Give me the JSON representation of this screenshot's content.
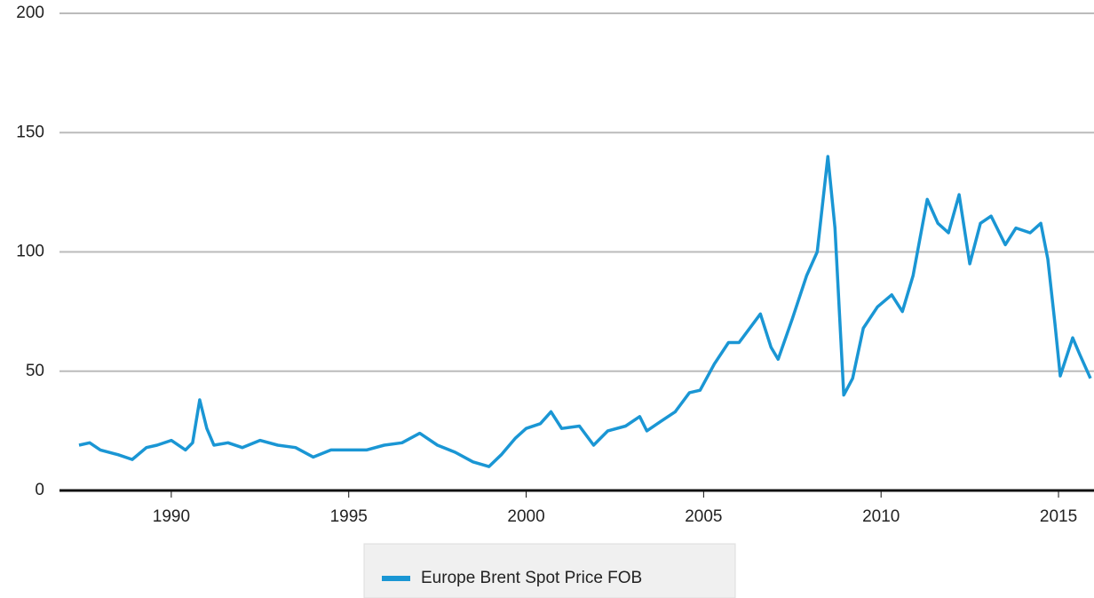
{
  "chart_data": {
    "type": "line",
    "x": [
      1987.4,
      1987.7,
      1988,
      1988.5,
      1988.9,
      1989.3,
      1989.6,
      1990,
      1990.4,
      1990.6,
      1990.8,
      1991,
      1991.2,
      1991.6,
      1992,
      1992.5,
      1993,
      1993.5,
      1994,
      1994.5,
      1995,
      1995.5,
      1996,
      1996.5,
      1997,
      1997.5,
      1998,
      1998.5,
      1998.95,
      1999.3,
      1999.7,
      2000,
      2000.4,
      2000.7,
      2001,
      2001.5,
      2001.9,
      2002.3,
      2002.8,
      2003.2,
      2003.4,
      2003.8,
      2004.2,
      2004.6,
      2004.9,
      2005.3,
      2005.7,
      2006,
      2006.6,
      2006.9,
      2007.1,
      2007.5,
      2007.9,
      2008.2,
      2008.5,
      2008.7,
      2008.95,
      2009.2,
      2009.5,
      2009.9,
      2010.3,
      2010.6,
      2010.9,
      2011.3,
      2011.6,
      2011.9,
      2012.2,
      2012.5,
      2012.8,
      2013.1,
      2013.5,
      2013.8,
      2014.2,
      2014.5,
      2014.7,
      2014.9,
      2015.05,
      2015.4,
      2015.6,
      2015.9
    ],
    "series": [
      {
        "name": "Europe Brent Spot Price FOB",
        "color": "#1a96d4",
        "values": [
          19,
          20,
          17,
          15,
          13,
          18,
          19,
          21,
          17,
          20,
          38,
          26,
          19,
          20,
          18,
          21,
          19,
          18,
          14,
          17,
          17,
          17,
          19,
          20,
          24,
          19,
          16,
          12,
          10,
          15,
          22,
          26,
          28,
          33,
          26,
          27,
          19,
          25,
          27,
          31,
          25,
          29,
          33,
          41,
          42,
          53,
          62,
          62,
          74,
          60,
          55,
          72,
          90,
          100,
          140,
          110,
          40,
          47,
          68,
          77,
          82,
          75,
          90,
          122,
          112,
          108,
          124,
          95,
          112,
          115,
          103,
          110,
          108,
          112,
          97,
          70,
          48,
          64,
          57,
          47
        ]
      }
    ],
    "xlim": [
      1986.85,
      2016
    ],
    "xticks": [
      1990,
      1995,
      2000,
      2005,
      2010,
      2015
    ],
    "ylim": [
      0,
      200
    ],
    "yticks": [
      0,
      50,
      100,
      150,
      200
    ],
    "grid": true,
    "legend": "bottom"
  }
}
